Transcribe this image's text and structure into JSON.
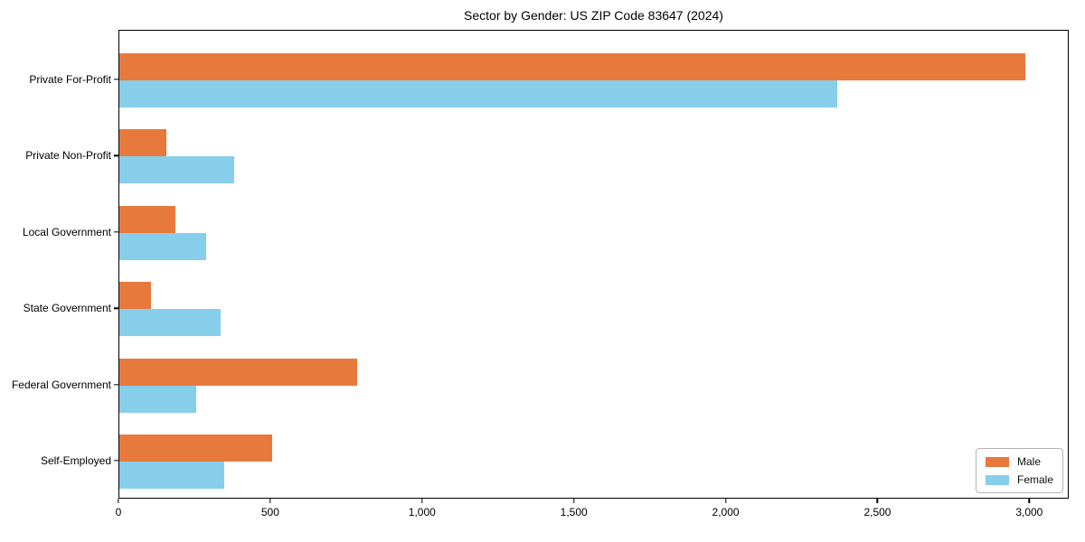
{
  "chart_data": {
    "type": "bar",
    "orientation": "horizontal",
    "title": "Sector by Gender: US ZIP Code 83647 (2024)",
    "categories": [
      "Private For-Profit",
      "Private Non-Profit",
      "Local Government",
      "State Government",
      "Federal Government",
      "Self-Employed"
    ],
    "series": [
      {
        "name": "Male",
        "color": "#E8793D",
        "values": [
          2990,
          155,
          185,
          105,
          785,
          505
        ]
      },
      {
        "name": "Female",
        "color": "#87CEEB",
        "values": [
          2370,
          380,
          285,
          335,
          255,
          345
        ]
      }
    ],
    "xlabel": "",
    "ylabel": "",
    "xlim": [
      0,
      3130
    ],
    "xticks": [
      0,
      500,
      1000,
      1500,
      2000,
      2500,
      3000
    ],
    "xtick_labels": [
      "0",
      "500",
      "1,000",
      "1,500",
      "2,000",
      "2,500",
      "3,000"
    ],
    "legend_position": "lower right",
    "grid": false,
    "background": "#ffffff",
    "spine_color": "#000000"
  },
  "legend": {
    "items": [
      {
        "label": "Male",
        "color": "#E8793D"
      },
      {
        "label": "Female",
        "color": "#87CEEB"
      }
    ]
  }
}
